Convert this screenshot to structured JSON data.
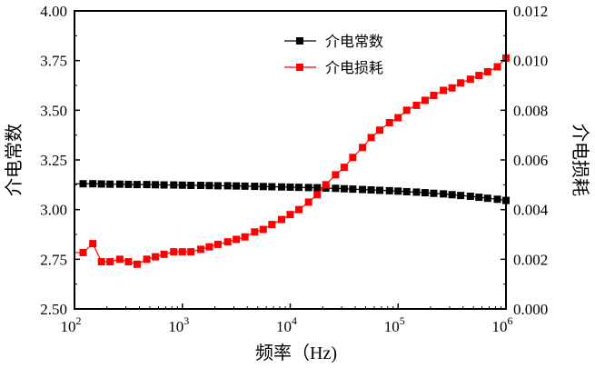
{
  "chart_data": {
    "type": "line",
    "xlabel": "频率（Hz)",
    "ylabel_left": "介电常数",
    "ylabel_right": "介电损耗",
    "xscale": "log",
    "xlim": [
      100,
      1000000
    ],
    "ylim_left": [
      2.5,
      4.0
    ],
    "ylim_right": [
      0,
      0.012
    ],
    "x_tick_labels": [
      {
        "base": "10",
        "exp": "2"
      },
      {
        "base": "10",
        "exp": "3"
      },
      {
        "base": "10",
        "exp": "4"
      },
      {
        "base": "10",
        "exp": "5"
      },
      {
        "base": "10",
        "exp": "6"
      }
    ],
    "y_left_ticks": [
      "2.50",
      "2.75",
      "3.00",
      "3.25",
      "3.50",
      "3.75",
      "4.00"
    ],
    "y_right_ticks": [
      "0.000",
      "0.002",
      "0.004",
      "0.006",
      "0.008",
      "0.010",
      "0.012"
    ],
    "legend_position": "top-center",
    "log10_x": [
      2.08,
      2.17,
      2.25,
      2.33,
      2.42,
      2.5,
      2.58,
      2.67,
      2.75,
      2.83,
      2.92,
      3.0,
      3.08,
      3.17,
      3.25,
      3.33,
      3.42,
      3.5,
      3.58,
      3.67,
      3.75,
      3.83,
      3.92,
      4.0,
      4.08,
      4.17,
      4.25,
      4.33,
      4.42,
      4.5,
      4.58,
      4.67,
      4.75,
      4.83,
      4.92,
      5.0,
      5.08,
      5.17,
      5.25,
      5.33,
      5.42,
      5.5,
      5.58,
      5.67,
      5.75,
      5.83,
      5.92,
      6.0
    ],
    "series": [
      {
        "name": "介电常数",
        "axis": "left",
        "color": "#000000",
        "values": [
          3.13,
          3.13,
          3.129,
          3.128,
          3.128,
          3.127,
          3.126,
          3.126,
          3.125,
          3.124,
          3.124,
          3.123,
          3.122,
          3.122,
          3.121,
          3.12,
          3.12,
          3.119,
          3.118,
          3.117,
          3.116,
          3.115,
          3.114,
          3.113,
          3.112,
          3.111,
          3.11,
          3.108,
          3.107,
          3.105,
          3.103,
          3.101,
          3.099,
          3.097,
          3.095,
          3.093,
          3.09,
          3.088,
          3.085,
          3.082,
          3.079,
          3.075,
          3.071,
          3.067,
          3.062,
          3.057,
          3.052,
          3.046
        ]
      },
      {
        "name": "介电损耗",
        "axis": "right",
        "color": "#ff0000",
        "values": [
          0.00227,
          0.00263,
          0.0019,
          0.0019,
          0.002,
          0.0019,
          0.0018,
          0.002,
          0.0021,
          0.0022,
          0.0023,
          0.0023,
          0.0023,
          0.0024,
          0.0025,
          0.0026,
          0.0027,
          0.0028,
          0.0029,
          0.0031,
          0.0032,
          0.0034,
          0.0036,
          0.0038,
          0.004,
          0.0043,
          0.0046,
          0.005,
          0.0054,
          0.0057,
          0.0061,
          0.0065,
          0.0069,
          0.0072,
          0.0075,
          0.0077,
          0.008,
          0.0082,
          0.0084,
          0.0086,
          0.0088,
          0.0089,
          0.0091,
          0.00925,
          0.0094,
          0.00955,
          0.00975,
          0.0101
        ]
      }
    ]
  }
}
